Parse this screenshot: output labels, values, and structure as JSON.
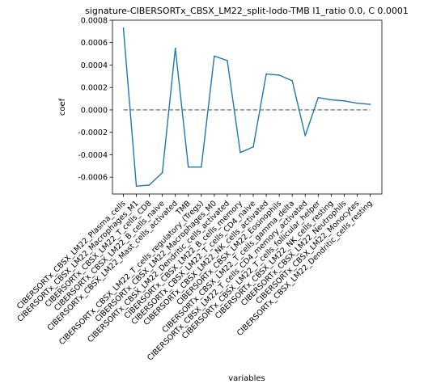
{
  "chart_data": {
    "type": "line",
    "title": "signature-CIBERSORTx_CBSX_LM22_split-lodo-TMB l1_ratio 0.0, C 0.0001",
    "xlabel": "variables",
    "ylabel": "coef",
    "ylim": [
      -0.00075,
      0.0008
    ],
    "yticks": [
      "0.0008",
      "0.0006",
      "0.0004",
      "0.0002",
      "0.0000",
      "-0.0002",
      "-0.0004",
      "-0.0006"
    ],
    "ytick_values": [
      0.0008,
      0.0006,
      0.0004,
      0.0002,
      0.0,
      -0.0002,
      -0.0004,
      -0.0006
    ],
    "grid": false,
    "categories": [
      "CIBERSORTx_CBSX_LM22_Plasma_cells",
      "CIBERSORTx_CBSX_LM22_Macrophages_M1",
      "CIBERSORTx_CBSX_LM22_T_cells_CD8",
      "CIBERSORTx_CBSX_LM22_B_cells_naive",
      "CIBERSORTx_CBSX_LM22_Mast_cells_activated",
      "TMB",
      "CIBERSORTx_CBSX_LM22_T_cells_regulatory_(Tregs)",
      "CIBERSORTx_CBSX_LM22_Macrophages_M0",
      "CIBERSORTx_CBSX_LM22_Dendritic_cells_activated",
      "CIBERSORTx_CBSX_LM22_B_cells_memory",
      "CIBERSORTx_CBSX_LM22_T_cells_CD4_naive",
      "CIBERSORTx_CBSX_LM22_NK_cells_activated",
      "CIBERSORTx_CBSX_LM22_Eosinophils",
      "CIBERSORTx_CBSX_LM22_T_cells_gamma_delta",
      "CIBERSORTx_CBSX_LM22_T_cells_CD4_memory_activated",
      "CIBERSORTx_CBSX_LM22_T_cells_follicular_helper",
      "CIBERSORTx_CBSX_LM22_NK_cells_resting",
      "CIBERSORTx_CBSX_LM22_Neutrophils",
      "CIBERSORTx_CBSX_LM22_Monocytes",
      "CIBERSORTx_CBSX_LM22_Dendritic_cells_resting"
    ],
    "series": [
      {
        "values": [
          0.00073,
          -0.00068,
          -0.00067,
          -0.00056,
          0.00055,
          -0.00051,
          -0.00051,
          0.00048,
          0.00044,
          -0.00038,
          -0.00033,
          0.00032,
          0.00031,
          0.00026,
          -0.00023,
          0.00011,
          9e-05,
          8e-05,
          6e-05,
          5e-05
        ],
        "color": "#1f77b4"
      }
    ],
    "reference_line": {
      "y": 0.0,
      "style": "dashed",
      "color": "#7f7f7f"
    }
  }
}
